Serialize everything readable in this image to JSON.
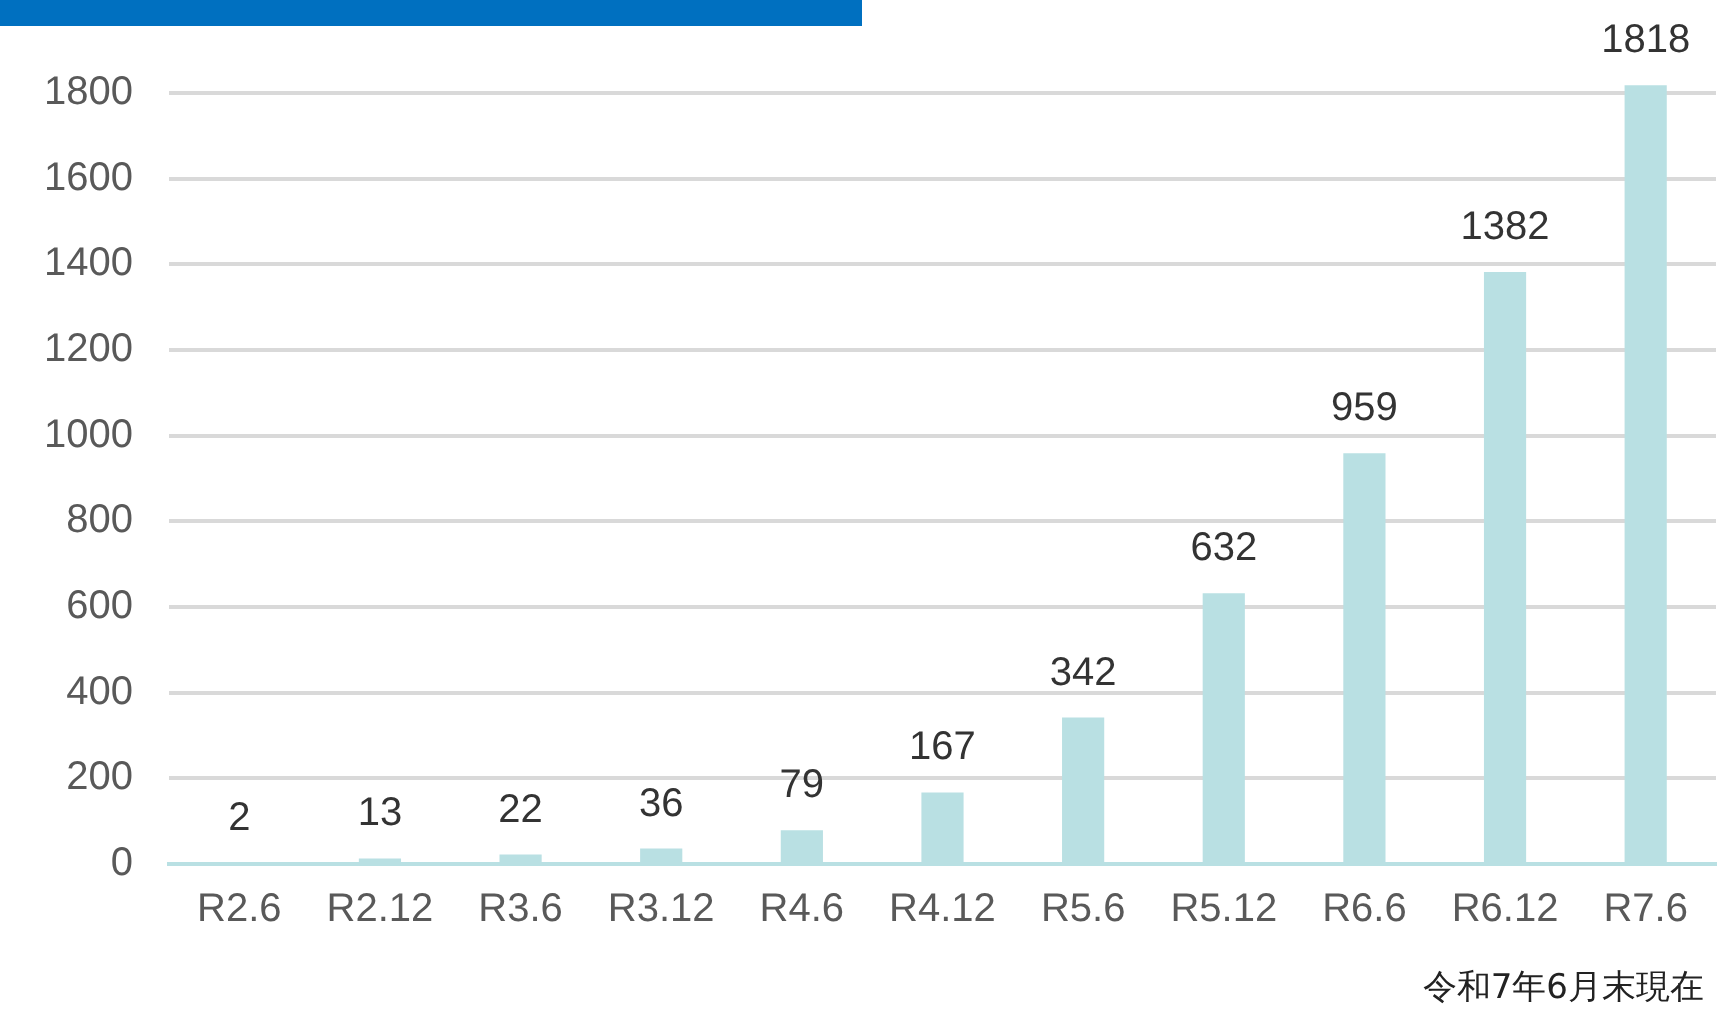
{
  "chart_data": {
    "type": "bar",
    "categories": [
      "R2.6",
      "R2.12",
      "R3.6",
      "R3.12",
      "R4.6",
      "R4.12",
      "R5.6",
      "R5.12",
      "R6.6",
      "R6.12",
      "R7.6"
    ],
    "values": [
      2,
      13,
      22,
      36,
      79,
      167,
      342,
      632,
      959,
      1382,
      1818
    ],
    "color": "#b9e0e3",
    "ylim": [
      0,
      1830
    ],
    "yticks": [
      0,
      200,
      400,
      600,
      800,
      1000,
      1200,
      1400,
      1600,
      1800
    ],
    "grid": "y",
    "data_labels": true,
    "legend": false,
    "annotations": [
      "令和7年6月末現在"
    ]
  }
}
